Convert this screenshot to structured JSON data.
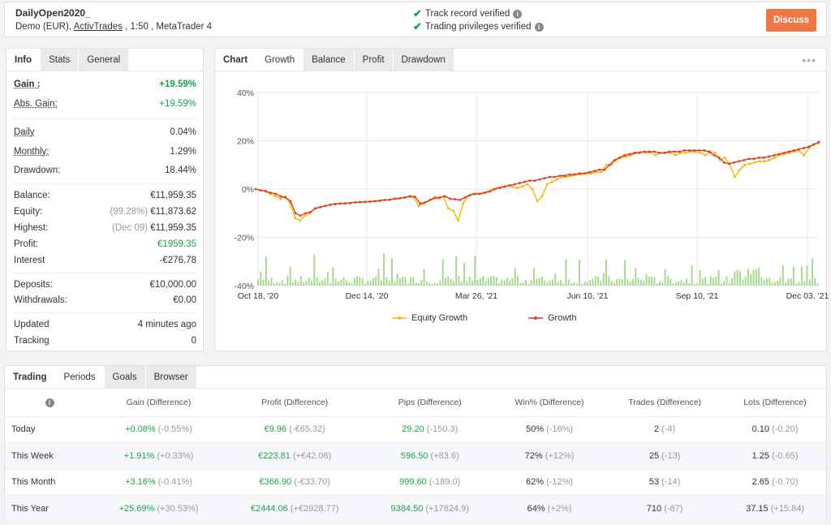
{
  "header": {
    "account_name": "DailyOpen2020_",
    "account_type": "Demo (EUR), ",
    "broker": "ActivTrades",
    "account_rest": " , 1:50 , MetaTrader 4",
    "verified_1": "Track record verified",
    "verified_2": "Trading privileges verified",
    "discuss_label": "Discuss",
    "accent_color": "#f07745"
  },
  "info_tabs": [
    "Info",
    "Stats",
    "General"
  ],
  "stats": {
    "gain": {
      "label": "Gain :",
      "value": "+19.59%"
    },
    "abs_gain": {
      "label": "Abs. Gain:",
      "value": "+19.59%"
    },
    "daily": {
      "label": "Daily",
      "value": "0.04%"
    },
    "monthly": {
      "label": "Monthly:",
      "value": "1.29%"
    },
    "drawdown": {
      "label": "Drawdown:",
      "value": "18.44%"
    },
    "balance": {
      "label": "Balance:",
      "value": "€11,959.35"
    },
    "equity": {
      "label": "Equity:",
      "note": "(99.28%)",
      "value": "€11,873.62"
    },
    "highest": {
      "label": "Highest:",
      "note": "(Dec 09)",
      "value": "€11,959.35"
    },
    "profit": {
      "label": "Profit:",
      "value": "€1959.35"
    },
    "interest": {
      "label": "Interest",
      "value": "-€276.78"
    },
    "deposits": {
      "label": "Deposits:",
      "value": "€10,000.00"
    },
    "withdrawals": {
      "label": "Withdrawals:",
      "value": "€0.00"
    },
    "updated": {
      "label": "Updated",
      "value": "4 minutes ago"
    },
    "tracking": {
      "label": "Tracking",
      "value": "0"
    }
  },
  "chart_tabs": [
    "Chart",
    "Growth",
    "Balance",
    "Profit",
    "Drawdown"
  ],
  "chart_data": {
    "type": "line",
    "y_ticks": [
      "40%",
      "20%",
      "0%",
      "-20%",
      "-40%"
    ],
    "ylim": [
      -40,
      40
    ],
    "x_ticks": [
      "Oct 18, '20",
      "Dec 14, '20",
      "Mar 26, '21",
      "Jun 10, '21",
      "Sep 10, '21",
      "Dec 03, '21"
    ],
    "grid": true,
    "legend_position": "bottom",
    "series": [
      {
        "name": "Equity Growth",
        "color": "#f5b800",
        "values": [
          0,
          -0.5,
          -1,
          -2,
          -3,
          -4,
          -3,
          -6,
          -12,
          -13,
          -11,
          -10,
          -8,
          -7.5,
          -7,
          -6.5,
          -6.2,
          -6,
          -6,
          -5.8,
          -5.5,
          -5.4,
          -5.3,
          -5.2,
          -5,
          -4.8,
          -4.5,
          -4.5,
          -4,
          -4,
          -3.5,
          -3,
          -3.5,
          -7,
          -6,
          -5,
          -4,
          -4,
          -3,
          -8,
          -9,
          -13,
          -6,
          -3,
          -2,
          -2,
          -1.5,
          -1,
          0,
          0.5,
          1,
          1.5,
          1,
          0.5,
          1,
          2,
          0,
          -5,
          -3,
          2,
          3,
          4,
          5,
          5,
          5.5,
          6,
          6,
          6.5,
          6.5,
          7,
          7,
          10,
          10,
          12,
          13,
          13.5,
          14,
          15,
          15.5,
          15,
          15,
          14,
          15,
          15,
          15,
          14,
          15,
          15,
          15.5,
          15.5,
          15,
          14,
          15.5,
          15,
          12,
          13,
          10,
          5,
          8,
          10,
          10.5,
          11,
          11.5,
          11.5,
          12,
          13,
          14,
          14.5,
          15,
          15.5,
          16,
          14,
          17,
          18.5,
          19
        ]
      },
      {
        "name": "Growth",
        "color": "#e03a2c",
        "values": [
          0,
          -0.5,
          -0.8,
          -1.5,
          -2,
          -3,
          -3.5,
          -5,
          -10,
          -11,
          -10,
          -9.5,
          -8,
          -7.5,
          -7,
          -6.5,
          -6.2,
          -6,
          -5.9,
          -5.8,
          -5.5,
          -5.4,
          -5.3,
          -5.2,
          -5,
          -4.8,
          -4.5,
          -4.4,
          -4,
          -3.8,
          -3.5,
          -3,
          -3.2,
          -6,
          -5.5,
          -4.5,
          -3.5,
          -3.5,
          -3,
          -4,
          -4.2,
          -4.5,
          -3.5,
          -2.5,
          -2,
          -2,
          -1.5,
          -1,
          0,
          0.5,
          1,
          1.5,
          2,
          2.5,
          3,
          3.5,
          3.5,
          4,
          4.5,
          5,
          5,
          5.5,
          5.5,
          6,
          6,
          6.5,
          6.5,
          7,
          7.5,
          8,
          8,
          10,
          12,
          13,
          14,
          14.5,
          15,
          15,
          15.5,
          15.5,
          15.5,
          15,
          15,
          15.5,
          15.5,
          15.5,
          16,
          16,
          16,
          16,
          16,
          15.5,
          14,
          13,
          11,
          10.5,
          11,
          11.5,
          12,
          12.5,
          12.5,
          13,
          13,
          13.5,
          14,
          14.5,
          15,
          15.5,
          16,
          16.5,
          17,
          17.5,
          18.5,
          19.5
        ]
      }
    ],
    "volume_color": "#a6d98f"
  },
  "periods_tabs": [
    "Trading",
    "Periods",
    "Goals",
    "Browser"
  ],
  "periods_table": {
    "headers": [
      "Gain (Difference)",
      "Profit (Difference)",
      "Pips (Difference)",
      "Win% (Difference)",
      "Trades (Difference)",
      "Lots (Difference)"
    ],
    "rows": [
      {
        "period": "Today",
        "gain": "+0.08%",
        "gain_diff": "(-0.55%)",
        "profit": "€9.96",
        "profit_diff": "(-€65.32)",
        "pips": "29.20",
        "pips_diff": "(-150.3)",
        "win": "50%",
        "win_diff": "(-16%)",
        "trades": "2",
        "trades_diff": "(-4)",
        "lots": "0.10",
        "lots_diff": "(-0.20)"
      },
      {
        "period": "This Week",
        "gain": "+1.91%",
        "gain_diff": "(+0.33%)",
        "profit": "€223.81",
        "profit_diff": "(+€42.06)",
        "pips": "596.50",
        "pips_diff": "(+83.6)",
        "win": "72%",
        "win_diff": "(+12%)",
        "trades": "25",
        "trades_diff": "(-13)",
        "lots": "1.25",
        "lots_diff": "(-0.65)"
      },
      {
        "period": "This Month",
        "gain": "+3.16%",
        "gain_diff": "(-0.41%)",
        "profit": "€366.90",
        "profit_diff": "(-€33.70)",
        "pips": "999.60",
        "pips_diff": "(-189.0)",
        "win": "62%",
        "win_diff": "(-12%)",
        "trades": "53",
        "trades_diff": "(-14)",
        "lots": "2.65",
        "lots_diff": "(-0.70)"
      },
      {
        "period": "This Year",
        "gain": "+25.69%",
        "gain_diff": "(+30.53%)",
        "profit": "€2444.06",
        "profit_diff": "(+€2928.77)",
        "pips": "9384.50",
        "pips_diff": "(+17824.9)",
        "win": "64%",
        "win_diff": "(+2%)",
        "trades": "710",
        "trades_diff": "(-67)",
        "lots": "37.15",
        "lots_diff": "(+15.84)"
      }
    ]
  }
}
